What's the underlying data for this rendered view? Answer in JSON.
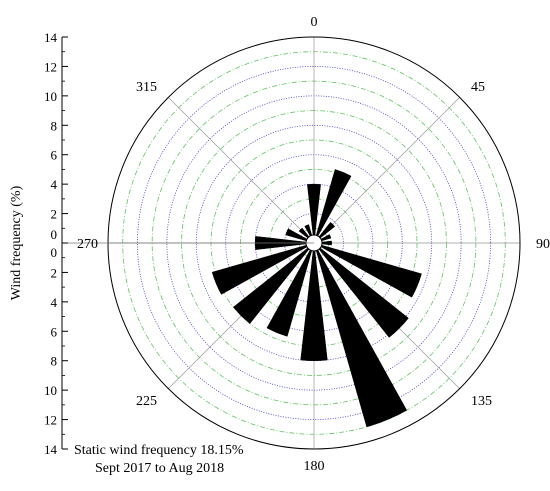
{
  "chart_data": {
    "type": "wind-rose",
    "ylabel": "Wind frequency (%)",
    "radial_range": [
      0,
      14
    ],
    "radial_ticks": [
      0,
      2,
      4,
      6,
      8,
      10,
      12,
      14
    ],
    "angle_labels": [
      "0",
      "45",
      "90",
      "135",
      "180",
      "225",
      "270",
      "315"
    ],
    "sectors": [
      {
        "direction": 0,
        "value": 4.0
      },
      {
        "direction": 22.5,
        "value": 5.2
      },
      {
        "direction": 45,
        "value": 1.8
      },
      {
        "direction": 67.5,
        "value": 1.2
      },
      {
        "direction": 90,
        "value": 1.2
      },
      {
        "direction": 112.5,
        "value": 7.6
      },
      {
        "direction": 135,
        "value": 8.2
      },
      {
        "direction": 157.5,
        "value": 13.0
      },
      {
        "direction": 180,
        "value": 8.0
      },
      {
        "direction": 202.5,
        "value": 6.6
      },
      {
        "direction": 225,
        "value": 7.0
      },
      {
        "direction": 247.5,
        "value": 7.2
      },
      {
        "direction": 270,
        "value": 4.0
      },
      {
        "direction": 292.5,
        "value": 2.0
      },
      {
        "direction": 315,
        "value": 1.3
      },
      {
        "direction": 337.5,
        "value": 1.3
      }
    ],
    "grid": true,
    "colors": {
      "bars": "#000000",
      "major_grid": "#3d3dcc",
      "minor_grid": "#5fc45f",
      "spokes": "#999999"
    }
  },
  "annotations": {
    "line1": "Static wind frequency 18.15%",
    "line2": "Sept 2017 to Aug 2018"
  }
}
